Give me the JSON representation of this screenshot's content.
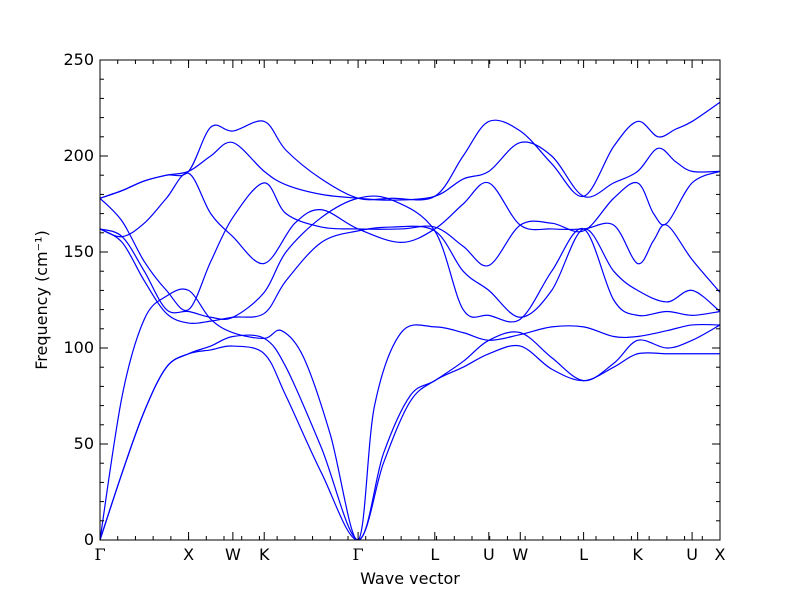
{
  "chart_data": {
    "type": "line",
    "title": "",
    "xlabel": "Wave vector",
    "ylabel": "Frequency (cm⁻¹)",
    "ylim": [
      0,
      250
    ],
    "yticks": [
      0,
      50,
      100,
      150,
      200,
      250
    ],
    "xlim": [
      0,
      7.0
    ],
    "grid": false,
    "legend": "none",
    "line_color": "#0000ff",
    "x_ticks": [
      {
        "label": "Γ",
        "value": 0.0
      },
      {
        "label": "X",
        "value": 1.0
      },
      {
        "label": "W",
        "value": 1.5
      },
      {
        "label": "K",
        "value": 1.854
      },
      {
        "label": "Γ",
        "value": 2.914
      },
      {
        "label": "L",
        "value": 3.78
      },
      {
        "label": "U",
        "value": 4.39
      },
      {
        "label": "W",
        "value": 4.745
      },
      {
        "label": "L",
        "value": 5.46
      },
      {
        "label": "K",
        "value": 6.07
      },
      {
        "label": "U",
        "value": 6.685
      },
      {
        "label": "X",
        "value": 7.0
      }
    ],
    "series": [
      {
        "values": [
          [
            0,
            0
          ],
          [
            0.25,
            35
          ],
          [
            0.5,
            67
          ],
          [
            0.75,
            90
          ],
          [
            1.0,
            97
          ],
          [
            1.25,
            99
          ],
          [
            1.5,
            101
          ],
          [
            1.854,
            97
          ],
          [
            2.1,
            75
          ],
          [
            2.5,
            35
          ],
          [
            2.914,
            0
          ],
          [
            3.2,
            40
          ],
          [
            3.5,
            72
          ],
          [
            3.78,
            83
          ],
          [
            4.1,
            90
          ],
          [
            4.39,
            97
          ],
          [
            4.745,
            101
          ],
          [
            5.1,
            89
          ],
          [
            5.46,
            83
          ],
          [
            5.8,
            90
          ],
          [
            6.07,
            97
          ],
          [
            6.4,
            97
          ],
          [
            6.685,
            97
          ],
          [
            7.0,
            97
          ]
        ]
      },
      {
        "values": [
          [
            0,
            0
          ],
          [
            0.25,
            35
          ],
          [
            0.5,
            67
          ],
          [
            0.75,
            90
          ],
          [
            1.0,
            97
          ],
          [
            1.25,
            101
          ],
          [
            1.5,
            106
          ],
          [
            1.854,
            105
          ],
          [
            2.1,
            90
          ],
          [
            2.5,
            48
          ],
          [
            2.914,
            0
          ],
          [
            3.2,
            45
          ],
          [
            3.5,
            75
          ],
          [
            3.78,
            83
          ],
          [
            4.1,
            93
          ],
          [
            4.39,
            104
          ],
          [
            4.745,
            108
          ],
          [
            5.1,
            95
          ],
          [
            5.46,
            83
          ],
          [
            5.8,
            92
          ],
          [
            6.07,
            104
          ],
          [
            6.4,
            100
          ],
          [
            6.685,
            104
          ],
          [
            7.0,
            112
          ]
        ]
      },
      {
        "values": [
          [
            0,
            0
          ],
          [
            0.25,
            75
          ],
          [
            0.5,
            115
          ],
          [
            0.75,
            127
          ],
          [
            1.0,
            130
          ],
          [
            1.25,
            115
          ],
          [
            1.5,
            108
          ],
          [
            1.854,
            105
          ],
          [
            2.05,
            109
          ],
          [
            2.3,
            95
          ],
          [
            2.6,
            55
          ],
          [
            2.914,
            0
          ],
          [
            3.1,
            70
          ],
          [
            3.4,
            108
          ],
          [
            3.78,
            111
          ],
          [
            4.1,
            108
          ],
          [
            4.39,
            104
          ],
          [
            4.745,
            107
          ],
          [
            5.1,
            111
          ],
          [
            5.46,
            111
          ],
          [
            5.8,
            106
          ],
          [
            6.07,
            106
          ],
          [
            6.4,
            109
          ],
          [
            6.685,
            112
          ],
          [
            7.0,
            112
          ]
        ]
      },
      {
        "values": [
          [
            0,
            162
          ],
          [
            0.25,
            155
          ],
          [
            0.5,
            135
          ],
          [
            0.75,
            118
          ],
          [
            1.0,
            113
          ],
          [
            1.25,
            114
          ],
          [
            1.5,
            116
          ],
          [
            1.854,
            118
          ],
          [
            2.1,
            135
          ],
          [
            2.5,
            155
          ],
          [
            2.914,
            161
          ],
          [
            3.3,
            163
          ],
          [
            3.78,
            161
          ],
          [
            4.1,
            140
          ],
          [
            4.39,
            130
          ],
          [
            4.745,
            116
          ],
          [
            5.1,
            130
          ],
          [
            5.46,
            162
          ],
          [
            5.8,
            140
          ],
          [
            6.07,
            130
          ],
          [
            6.4,
            124
          ],
          [
            6.685,
            130
          ],
          [
            7.0,
            119
          ]
        ]
      },
      {
        "values": [
          [
            0,
            162
          ],
          [
            0.25,
            158
          ],
          [
            0.5,
            140
          ],
          [
            0.75,
            120
          ],
          [
            1.0,
            119
          ],
          [
            1.25,
            116
          ],
          [
            1.5,
            116
          ],
          [
            1.854,
            129
          ],
          [
            2.1,
            150
          ],
          [
            2.5,
            168
          ],
          [
            2.914,
            178
          ],
          [
            3.3,
            177
          ],
          [
            3.78,
            161
          ],
          [
            4.1,
            120
          ],
          [
            4.39,
            117
          ],
          [
            4.745,
            115
          ],
          [
            5.1,
            140
          ],
          [
            5.46,
            162
          ],
          [
            5.8,
            125
          ],
          [
            6.07,
            117
          ],
          [
            6.4,
            119
          ],
          [
            6.685,
            117
          ],
          [
            7.0,
            119
          ]
        ]
      },
      {
        "values": [
          [
            0,
            162
          ],
          [
            0.25,
            158
          ],
          [
            0.5,
            165
          ],
          [
            0.75,
            178
          ],
          [
            1.0,
            191
          ],
          [
            1.25,
            170
          ],
          [
            1.5,
            158
          ],
          [
            1.854,
            144
          ],
          [
            2.2,
            165
          ],
          [
            2.5,
            172
          ],
          [
            2.914,
            162
          ],
          [
            3.4,
            155
          ],
          [
            3.78,
            162
          ],
          [
            4.1,
            175
          ],
          [
            4.39,
            186
          ],
          [
            4.745,
            164
          ],
          [
            5.1,
            162
          ],
          [
            5.46,
            162
          ],
          [
            5.8,
            164
          ],
          [
            6.07,
            144
          ],
          [
            6.25,
            156
          ],
          [
            6.4,
            164
          ],
          [
            6.685,
            146
          ],
          [
            7.0,
            129
          ]
        ]
      },
      {
        "values": [
          [
            0,
            178
          ],
          [
            0.25,
            166
          ],
          [
            0.5,
            145
          ],
          [
            0.75,
            130
          ],
          [
            1.0,
            120
          ],
          [
            1.25,
            145
          ],
          [
            1.5,
            168
          ],
          [
            1.854,
            186
          ],
          [
            2.1,
            170
          ],
          [
            2.5,
            163
          ],
          [
            2.914,
            162
          ],
          [
            3.4,
            162
          ],
          [
            3.78,
            163
          ],
          [
            4.1,
            153
          ],
          [
            4.39,
            143
          ],
          [
            4.745,
            164
          ],
          [
            5.1,
            165
          ],
          [
            5.46,
            161
          ],
          [
            5.8,
            178
          ],
          [
            6.07,
            186
          ],
          [
            6.25,
            170
          ],
          [
            6.4,
            165
          ],
          [
            6.685,
            186
          ],
          [
            7.0,
            192
          ]
        ]
      },
      {
        "values": [
          [
            0,
            178
          ],
          [
            0.25,
            182
          ],
          [
            0.5,
            187
          ],
          [
            0.75,
            190
          ],
          [
            1.0,
            192
          ],
          [
            1.25,
            200
          ],
          [
            1.5,
            207
          ],
          [
            1.854,
            192
          ],
          [
            2.1,
            185
          ],
          [
            2.5,
            180
          ],
          [
            2.914,
            178
          ],
          [
            3.3,
            177
          ],
          [
            3.78,
            179
          ],
          [
            4.1,
            188
          ],
          [
            4.39,
            192
          ],
          [
            4.745,
            207
          ],
          [
            5.1,
            200
          ],
          [
            5.46,
            179
          ],
          [
            5.8,
            186
          ],
          [
            6.07,
            192
          ],
          [
            6.3,
            204
          ],
          [
            6.5,
            197
          ],
          [
            6.685,
            192
          ],
          [
            7.0,
            192
          ]
        ]
      },
      {
        "values": [
          [
            0,
            178
          ],
          [
            0.25,
            182
          ],
          [
            0.5,
            187
          ],
          [
            0.75,
            190
          ],
          [
            1.0,
            192
          ],
          [
            1.25,
            215
          ],
          [
            1.5,
            213
          ],
          [
            1.854,
            218
          ],
          [
            2.1,
            203
          ],
          [
            2.5,
            188
          ],
          [
            2.914,
            178
          ],
          [
            3.3,
            178
          ],
          [
            3.78,
            179
          ],
          [
            4.1,
            200
          ],
          [
            4.39,
            218
          ],
          [
            4.745,
            213
          ],
          [
            5.1,
            196
          ],
          [
            5.46,
            179
          ],
          [
            5.8,
            205
          ],
          [
            6.07,
            218
          ],
          [
            6.3,
            210
          ],
          [
            6.5,
            214
          ],
          [
            6.685,
            218
          ],
          [
            7.0,
            228
          ]
        ]
      }
    ]
  }
}
